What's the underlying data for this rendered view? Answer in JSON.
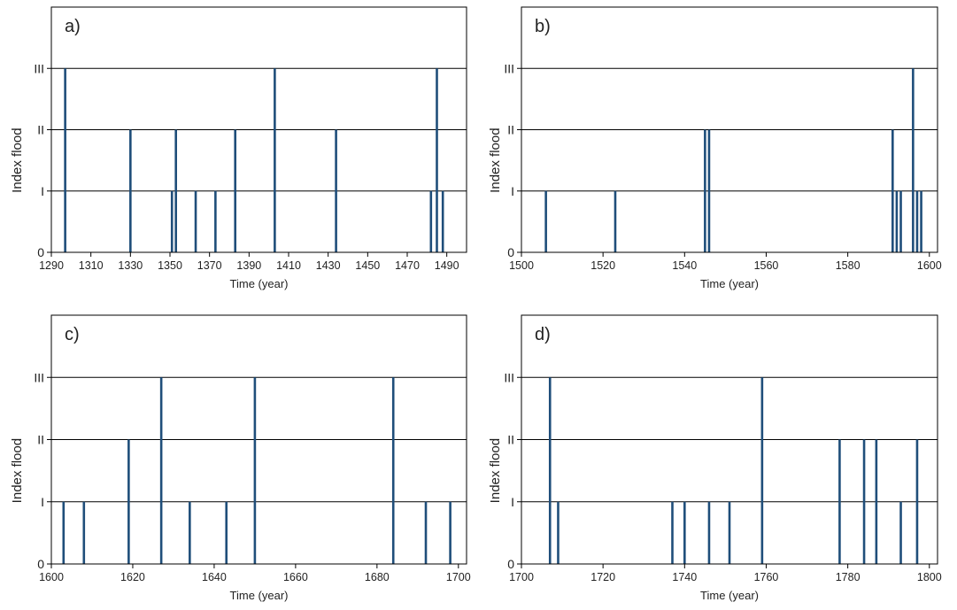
{
  "colors": {
    "bar": "#1f4e7a",
    "gridline": "#000000",
    "frame": "#000000"
  },
  "chart_data": [
    {
      "type": "bar",
      "panel_label": "a)",
      "xlabel": "Time (year)",
      "ylabel": "Index flood",
      "xlim": [
        1290,
        1500
      ],
      "ylim": [
        0,
        4
      ],
      "xticks": [
        1290,
        1310,
        1330,
        1350,
        1370,
        1390,
        1410,
        1430,
        1450,
        1470,
        1490
      ],
      "yticks": [
        0,
        1,
        2,
        3
      ],
      "ytick_labels": [
        "0",
        "I",
        "II",
        "III"
      ],
      "grid": "horizontal",
      "x": [
        1297,
        1330,
        1351,
        1353,
        1363,
        1373,
        1383,
        1403,
        1434,
        1482,
        1485,
        1488
      ],
      "values": [
        3,
        2,
        1,
        2,
        1,
        1,
        2,
        3,
        2,
        1,
        3,
        1
      ]
    },
    {
      "type": "bar",
      "panel_label": "b)",
      "xlabel": "Time (year)",
      "ylabel": "Index flood",
      "xlim": [
        1500,
        1602
      ],
      "ylim": [
        0,
        4
      ],
      "xticks": [
        1500,
        1520,
        1540,
        1560,
        1580,
        1600
      ],
      "yticks": [
        0,
        1,
        2,
        3
      ],
      "ytick_labels": [
        "0",
        "I",
        "II",
        "III"
      ],
      "grid": "horizontal",
      "x": [
        1506,
        1523,
        1545,
        1546,
        1591,
        1592,
        1593,
        1596,
        1597,
        1598
      ],
      "values": [
        1,
        1,
        2,
        2,
        2,
        1,
        1,
        3,
        1,
        1
      ]
    },
    {
      "type": "bar",
      "panel_label": "c)",
      "xlabel": "Time (year)",
      "ylabel": "Index flood",
      "xlim": [
        1600,
        1702
      ],
      "ylim": [
        0,
        4
      ],
      "xticks": [
        1600,
        1620,
        1640,
        1660,
        1680,
        1700
      ],
      "yticks": [
        0,
        1,
        2,
        3
      ],
      "ytick_labels": [
        "0",
        "I",
        "II",
        "III"
      ],
      "grid": "horizontal",
      "x": [
        1603,
        1608,
        1619,
        1627,
        1634,
        1643,
        1650,
        1684,
        1692,
        1698
      ],
      "values": [
        1,
        1,
        2,
        3,
        1,
        1,
        3,
        3,
        1,
        1
      ]
    },
    {
      "type": "bar",
      "panel_label": "d)",
      "xlabel": "Time (year)",
      "ylabel": "Index flood",
      "xlim": [
        1700,
        1802
      ],
      "ylim": [
        0,
        4
      ],
      "xticks": [
        1700,
        1720,
        1740,
        1760,
        1780,
        1800
      ],
      "yticks": [
        0,
        1,
        2,
        3
      ],
      "ytick_labels": [
        "0",
        "I",
        "II",
        "III"
      ],
      "grid": "horizontal",
      "x": [
        1707,
        1709,
        1737,
        1740,
        1746,
        1751,
        1759,
        1778,
        1784,
        1787,
        1793,
        1797
      ],
      "values": [
        3,
        1,
        1,
        1,
        1,
        1,
        3,
        2,
        2,
        2,
        1,
        2
      ]
    }
  ]
}
